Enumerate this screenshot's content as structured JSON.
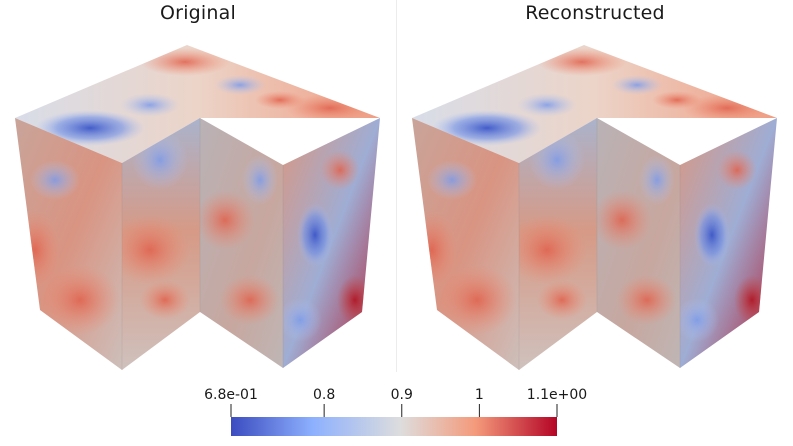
{
  "panels": [
    {
      "title": "Original"
    },
    {
      "title": "Reconstructed"
    }
  ],
  "colorbar": {
    "ticks": [
      {
        "label": "6.8e-01",
        "value": 0.68
      },
      {
        "label": "0.8",
        "value": 0.8
      },
      {
        "label": "0.9",
        "value": 0.9
      },
      {
        "label": "1",
        "value": 1.0
      },
      {
        "label": "1.1e+00",
        "value": 1.1
      }
    ],
    "range": [
      0.68,
      1.1
    ],
    "colormap": [
      "#3b4cc0",
      "#8db0fe",
      "#dddddd",
      "#f49a7b",
      "#b40426"
    ]
  }
}
